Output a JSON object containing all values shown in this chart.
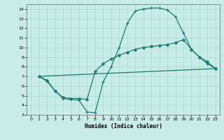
{
  "xlabel": "Humidex (Indice chaleur)",
  "bg_color": "#c8ece6",
  "grid_color": "#a8d8d0",
  "line_color": "#1a7a6e",
  "xlim": [
    -0.5,
    23.5
  ],
  "ylim": [
    3,
    14.5
  ],
  "xticks": [
    0,
    1,
    2,
    3,
    4,
    5,
    6,
    7,
    8,
    9,
    10,
    11,
    12,
    13,
    14,
    15,
    16,
    17,
    18,
    19,
    20,
    21,
    22,
    23
  ],
  "yticks": [
    3,
    4,
    5,
    6,
    7,
    8,
    9,
    10,
    11,
    12,
    13,
    14
  ],
  "curve1_x": [
    1,
    2,
    3,
    4,
    5,
    6,
    7,
    8,
    9,
    10,
    11,
    12,
    13,
    14,
    15,
    16,
    17,
    18,
    19,
    20,
    21,
    22,
    23
  ],
  "curve1_y": [
    7.0,
    6.5,
    5.5,
    4.7,
    4.6,
    4.5,
    3.3,
    3.2,
    6.4,
    8.0,
    10.0,
    12.5,
    13.8,
    14.0,
    14.1,
    14.1,
    13.9,
    13.2,
    11.5,
    9.8,
    9.0,
    8.3,
    7.8
  ],
  "curve2_x": [
    1,
    2,
    3,
    4,
    5,
    6,
    7,
    8,
    9,
    10,
    11,
    12,
    13,
    14,
    15,
    16,
    17,
    18,
    19,
    20,
    21,
    22,
    23
  ],
  "curve2_y": [
    7.0,
    6.6,
    5.5,
    4.8,
    4.7,
    4.7,
    4.6,
    7.5,
    8.3,
    8.8,
    9.2,
    9.5,
    9.8,
    10.0,
    10.1,
    10.2,
    10.3,
    10.5,
    10.8,
    9.8,
    9.0,
    8.5,
    7.8
  ],
  "curve3_x": [
    1,
    23
  ],
  "curve3_y": [
    7.0,
    7.8
  ],
  "marker1": "+",
  "marker2": "o",
  "markersize1": 3,
  "markersize2": 2.5,
  "lw": 0.9
}
